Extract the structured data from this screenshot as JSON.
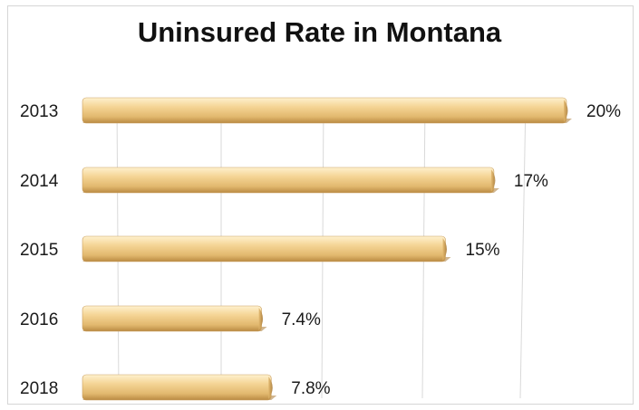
{
  "chart_data": {
    "type": "bar",
    "orientation": "horizontal",
    "title": "Uninsured Rate in Montana",
    "xlabel": "",
    "ylabel": "",
    "categories": [
      "2013",
      "2014",
      "2015",
      "2016",
      "2018"
    ],
    "values": [
      20,
      17,
      15,
      7.4,
      7.8
    ],
    "value_labels": [
      "20%",
      "17%",
      "15%",
      "7.4%",
      "7.8%"
    ],
    "xlim": [
      0,
      20
    ],
    "grid": true,
    "legend": "none",
    "bar_color": "#f2cf8c",
    "bar_shadow_color": "#b98a43"
  }
}
